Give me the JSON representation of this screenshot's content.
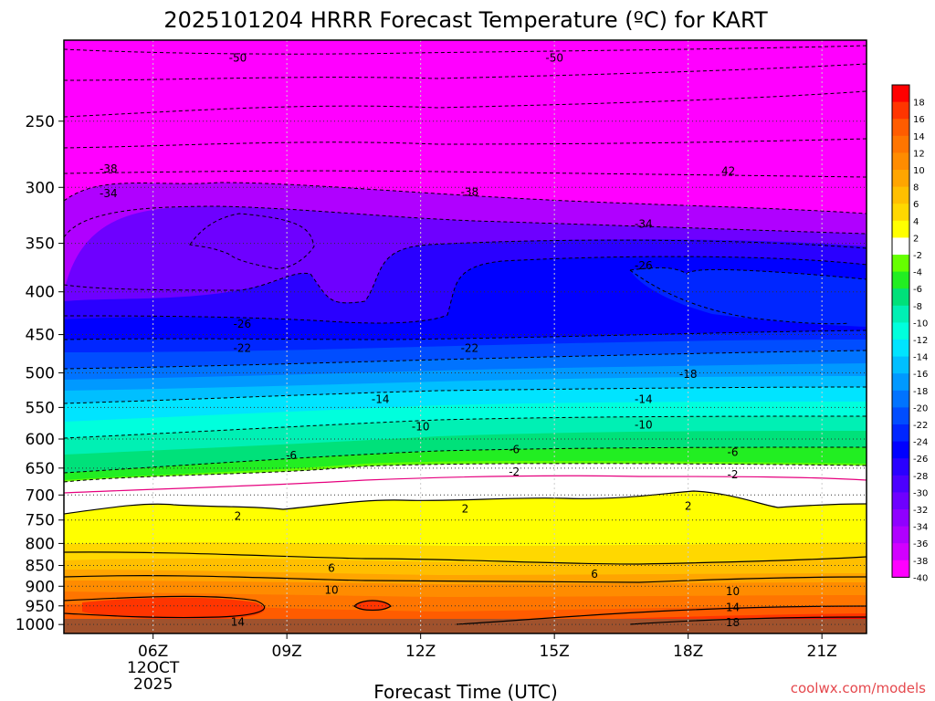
{
  "chart_data": {
    "type": "contour",
    "title": "2025101204 HRRR Forecast Temperature (ºC) for KART",
    "xlabel": "Forecast Time (UTC)",
    "ylabel": "",
    "credit": "coolwx.com/models",
    "x_ticks": [
      {
        "hour": 6,
        "label": "06Z",
        "sub1": "12OCT",
        "sub2": "2025"
      },
      {
        "hour": 9,
        "label": "09Z"
      },
      {
        "hour": 12,
        "label": "12Z"
      },
      {
        "hour": 15,
        "label": "15Z"
      },
      {
        "hour": 18,
        "label": "18Z"
      },
      {
        "hour": 21,
        "label": "21Z"
      }
    ],
    "xlim": [
      4.0,
      22.0
    ],
    "y_ticks": [
      250,
      300,
      350,
      400,
      450,
      500,
      550,
      600,
      650,
      700,
      750,
      800,
      850,
      900,
      950,
      1000
    ],
    "ylim": [
      1025,
      200
    ],
    "colorbar": {
      "levels": [
        18,
        16,
        14,
        12,
        10,
        8,
        6,
        4,
        2,
        -2,
        -4,
        -6,
        -8,
        -10,
        -12,
        -14,
        -16,
        -18,
        -20,
        -22,
        -24,
        -26,
        -28,
        -30,
        -32,
        -34,
        -36,
        -38,
        -40
      ],
      "colors": [
        "#ff0000",
        "#ff3500",
        "#ff5c00",
        "#ff7500",
        "#ff8c00",
        "#ffa500",
        "#ffbf00",
        "#ffd800",
        "#ffff00",
        "#ffffff",
        "#66ff00",
        "#22ee22",
        "#00e17a",
        "#00f0b4",
        "#00ffdd",
        "#00e4ff",
        "#00bfff",
        "#0099ff",
        "#0073ff",
        "#004dff",
        "#0026ff",
        "#0000ff",
        "#2a00ff",
        "#4c00ff",
        "#6e00ff",
        "#9000ff",
        "#b000ff",
        "#d200ff",
        "#ff00ff"
      ]
    },
    "contour_labels": [
      {
        "text": "-50",
        "hour": 7.9,
        "p": 210
      },
      {
        "text": "-50",
        "hour": 15.0,
        "p": 210
      },
      {
        "text": "-38",
        "hour": 5.0,
        "p": 285
      },
      {
        "text": "42",
        "hour": 18.9,
        "p": 287
      },
      {
        "text": "-34",
        "hour": 5.0,
        "p": 305
      },
      {
        "text": "-38",
        "hour": 13.1,
        "p": 304
      },
      {
        "text": "-34",
        "hour": 17.0,
        "p": 332
      },
      {
        "text": "-26",
        "hour": 17.0,
        "p": 372
      },
      {
        "text": "-26",
        "hour": 8.0,
        "p": 437
      },
      {
        "text": "-22",
        "hour": 8.0,
        "p": 467
      },
      {
        "text": "-22",
        "hour": 13.1,
        "p": 467
      },
      {
        "text": "-18",
        "hour": 18.0,
        "p": 502
      },
      {
        "text": "-14",
        "hour": 11.1,
        "p": 538
      },
      {
        "text": "-14",
        "hour": 17.0,
        "p": 538
      },
      {
        "text": "-10",
        "hour": 12.0,
        "p": 580
      },
      {
        "text": "-10",
        "hour": 17.0,
        "p": 577
      },
      {
        "text": "-6",
        "hour": 9.1,
        "p": 628
      },
      {
        "text": "-6",
        "hour": 14.1,
        "p": 618
      },
      {
        "text": "-6",
        "hour": 19.0,
        "p": 622
      },
      {
        "text": "-2",
        "hour": 14.1,
        "p": 657
      },
      {
        "text": "-2",
        "hour": 19.0,
        "p": 662
      },
      {
        "text": "2",
        "hour": 7.9,
        "p": 742
      },
      {
        "text": "2",
        "hour": 13.0,
        "p": 727
      },
      {
        "text": "2",
        "hour": 18.0,
        "p": 722
      },
      {
        "text": "6",
        "hour": 10.0,
        "p": 856
      },
      {
        "text": "6",
        "hour": 15.9,
        "p": 870
      },
      {
        "text": "10",
        "hour": 10.0,
        "p": 910
      },
      {
        "text": "10",
        "hour": 19.0,
        "p": 913
      },
      {
        "text": "14",
        "hour": 7.9,
        "p": 993
      },
      {
        "text": "14",
        "hour": 19.0,
        "p": 954
      },
      {
        "text": "18",
        "hour": 19.0,
        "p": 994
      }
    ]
  }
}
